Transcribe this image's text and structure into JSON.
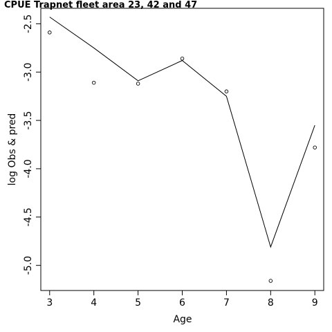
{
  "chart_data": {
    "type": "line",
    "title": "CPUE Trapnet fleet area 23, 42 and 47",
    "xlabel": "Age",
    "ylabel": "log Obs & pred",
    "xlim": [
      2.8,
      9.2
    ],
    "ylim": [
      -5.26,
      -2.34
    ],
    "x": [
      3,
      4,
      5,
      6,
      7,
      8,
      9
    ],
    "xticks": [
      "3",
      "4",
      "5",
      "6",
      "7",
      "8",
      "9"
    ],
    "yticks": [
      -2.5,
      -3.0,
      -3.5,
      -4.0,
      -4.5,
      -5.0
    ],
    "ytick_labels": [
      "-2.5",
      "-3.0",
      "-3.5",
      "-4.0",
      "-4.5",
      "-5.0"
    ],
    "grid": false,
    "series": [
      {
        "style": "line",
        "values": [
          -2.43,
          -2.75,
          -3.09,
          -2.88,
          -3.25,
          -4.81,
          -3.55
        ]
      },
      {
        "style": "points",
        "values": [
          -2.59,
          -3.11,
          -3.12,
          -2.86,
          -3.2,
          -5.16,
          -3.78
        ]
      }
    ]
  }
}
